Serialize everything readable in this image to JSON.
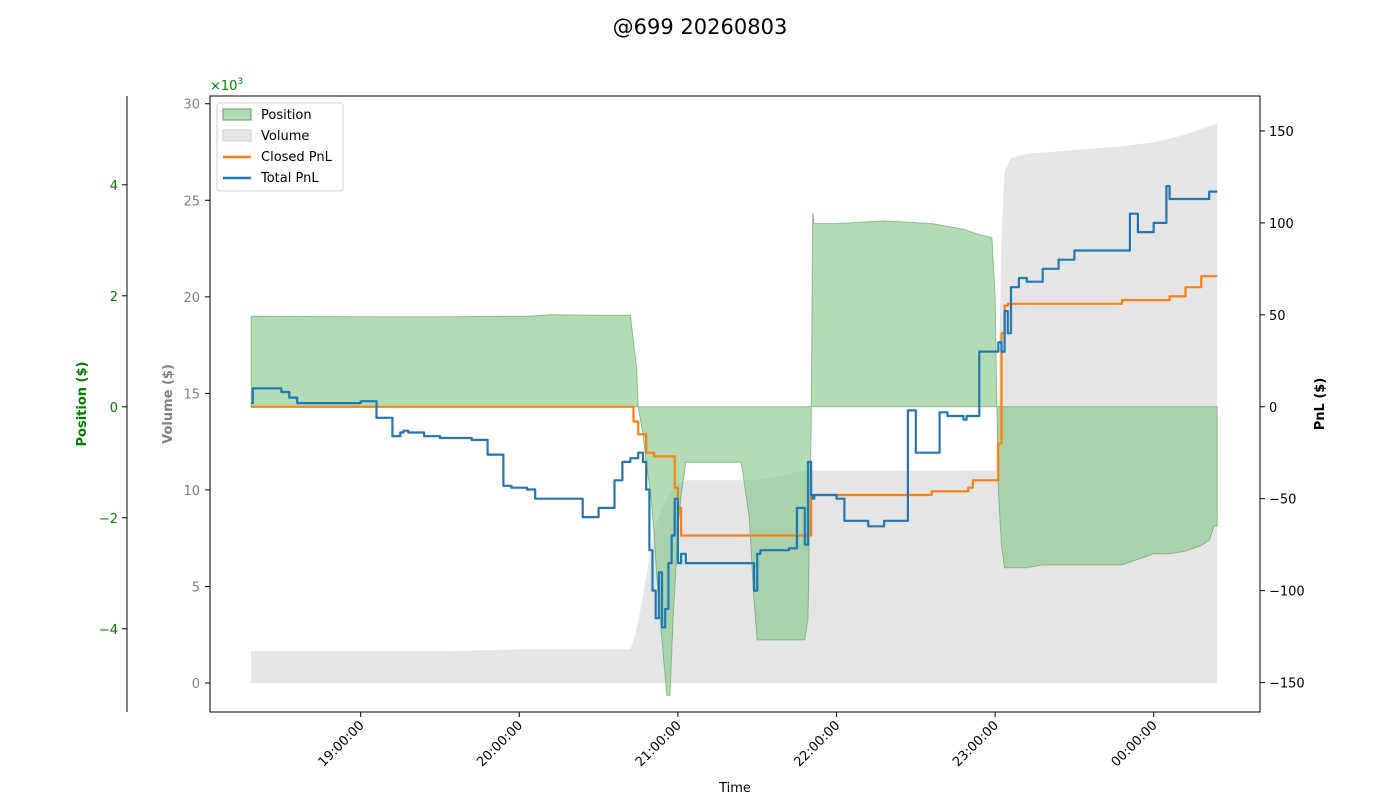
{
  "colors": {
    "position": "#008000",
    "position_fill": "#82c482",
    "volume_fill": "#d3d3d3",
    "volume_axis": "#808080",
    "closed_pnl": "#ff7f0e",
    "total_pnl": "#1f77b4",
    "axis": "#000000"
  },
  "chart_data": {
    "type": "line",
    "title": "@699 20260803",
    "xlabel": "Time",
    "x_ticks": [
      "19:00:00",
      "20:00:00",
      "21:00:00",
      "22:00:00",
      "23:00:00",
      "00:00:00"
    ],
    "axes": {
      "position": {
        "label": "Position ($)",
        "ylim": [
          -5.5,
          5.6
        ],
        "scale_label": "×10",
        "scale_exp": "3",
        "ticks": [
          4,
          2,
          0,
          -2,
          -4
        ],
        "tick_labels": [
          "4",
          "2",
          "0",
          "−2",
          "−4"
        ]
      },
      "volume": {
        "label": "Volume ($)",
        "ylim": [
          -1500,
          30400
        ],
        "ticks": [
          0,
          5000,
          10000,
          15000,
          20000,
          25000,
          30000
        ],
        "tick_labels": [
          "0",
          "5",
          "10",
          "15",
          "20",
          "25",
          "30"
        ]
      },
      "pnl": {
        "label": "PnL ($)",
        "ylim": [
          -166,
          169
        ],
        "ticks": [
          150,
          100,
          50,
          0,
          -50,
          -100,
          -150
        ],
        "tick_labels": [
          "150",
          "100",
          "50",
          "0",
          "−50",
          "−100",
          "−150"
        ]
      }
    },
    "xlim_hours": [
      18.05,
      24.67
    ],
    "legend": {
      "position": "top-left",
      "entries": [
        {
          "label": "Position",
          "key": "position"
        },
        {
          "label": "Volume",
          "key": "volume"
        },
        {
          "label": "Closed PnL",
          "key": "closed_pnl"
        },
        {
          "label": "Total PnL",
          "key": "total_pnl"
        }
      ]
    },
    "series": [
      {
        "name": "Position",
        "kind": "area",
        "axis": "position",
        "x": [
          18.31,
          18.33,
          19.2,
          19.5,
          19.9,
          20.05,
          20.2,
          20.5,
          20.7,
          20.74,
          20.75,
          20.78,
          20.8,
          20.83,
          20.85,
          20.87,
          20.9,
          20.93,
          20.95,
          20.97,
          20.99,
          21.0,
          21.02,
          21.05,
          21.4,
          21.45,
          21.48,
          21.5,
          21.52,
          21.8,
          21.82,
          21.84,
          21.85,
          21.86,
          22.0,
          22.3,
          22.6,
          22.7,
          22.8,
          22.9,
          22.98,
          23.0,
          23.02,
          23.04,
          23.06,
          23.08,
          23.1,
          23.2,
          23.3,
          23.5,
          23.8,
          24.0,
          24.1,
          24.2,
          24.3,
          24.35,
          24.38,
          24.4
        ],
        "y": [
          1.63,
          1.63,
          1.62,
          1.62,
          1.63,
          1.63,
          1.66,
          1.65,
          1.65,
          0.7,
          0.0,
          -0.5,
          -1.0,
          -1.6,
          -2.3,
          -3.2,
          -4.2,
          -5.2,
          -5.2,
          -3.8,
          -2.8,
          -2.2,
          -1.6,
          -1.0,
          -1.0,
          -2.0,
          -3.5,
          -4.2,
          -4.2,
          -4.2,
          -3.8,
          -0.5,
          3.5,
          3.3,
          3.3,
          3.35,
          3.3,
          3.25,
          3.2,
          3.1,
          3.05,
          2.0,
          -1.5,
          -2.5,
          -2.9,
          -2.9,
          -2.9,
          -2.9,
          -2.85,
          -2.85,
          -2.85,
          -2.65,
          -2.65,
          -2.6,
          -2.5,
          -2.4,
          -2.15,
          -2.15
        ]
      },
      {
        "name": "Volume",
        "kind": "area",
        "axis": "volume",
        "x": [
          18.31,
          18.33,
          19.5,
          20.05,
          20.5,
          20.7,
          20.72,
          20.75,
          20.78,
          20.8,
          20.82,
          20.85,
          20.9,
          20.95,
          21.0,
          21.05,
          21.5,
          21.8,
          21.85,
          22.0,
          22.3,
          22.6,
          22.9,
          23.0,
          23.02,
          23.04,
          23.06,
          23.1,
          23.2,
          23.5,
          23.8,
          24.0,
          24.1,
          24.2,
          24.3,
          24.4
        ],
        "y": [
          1650,
          1650,
          1650,
          1750,
          1750,
          1750,
          2200,
          3200,
          4500,
          5500,
          6500,
          8000,
          9000,
          9800,
          10300,
          10500,
          10500,
          11000,
          11000,
          11000,
          11000,
          11000,
          11000,
          11000,
          14000,
          23000,
          26500,
          27200,
          27400,
          27600,
          27800,
          28000,
          28200,
          28400,
          28700,
          28950
        ]
      },
      {
        "name": "Closed PnL",
        "kind": "line",
        "axis": "pnl",
        "x": [
          18.31,
          20.68,
          20.72,
          20.75,
          20.8,
          20.85,
          20.9,
          20.93,
          20.95,
          20.98,
          21.0,
          21.02,
          21.5,
          21.75,
          21.8,
          21.84,
          21.86,
          22.0,
          22.5,
          22.6,
          22.7,
          22.8,
          22.83,
          22.86,
          22.9,
          22.98,
          23.02,
          23.04,
          23.06,
          23.08,
          23.2,
          23.5,
          23.8,
          24.0,
          24.1,
          24.2,
          24.3,
          24.4
        ],
        "y": [
          0,
          0,
          -8,
          -15,
          -25,
          -27,
          -27,
          -27,
          -27,
          -44,
          -55,
          -70,
          -70,
          -70,
          -70,
          -48,
          -48,
          -48,
          -48,
          -46,
          -46,
          -46,
          -44,
          -40,
          -40,
          -40,
          -20,
          40,
          55,
          56,
          56,
          56,
          58,
          58,
          60,
          65,
          71,
          71
        ]
      },
      {
        "name": "Total PnL",
        "kind": "line",
        "axis": "pnl",
        "x": [
          18.31,
          18.32,
          18.33,
          18.5,
          18.55,
          18.6,
          18.65,
          18.7,
          18.75,
          19.0,
          19.02,
          19.1,
          19.15,
          19.2,
          19.25,
          19.27,
          19.3,
          19.4,
          19.5,
          19.6,
          19.7,
          19.8,
          19.9,
          19.95,
          20.05,
          20.1,
          20.2,
          20.4,
          20.5,
          20.6,
          20.65,
          20.7,
          20.72,
          20.75,
          20.78,
          20.8,
          20.82,
          20.84,
          20.86,
          20.88,
          20.9,
          20.92,
          20.94,
          20.96,
          20.98,
          21.0,
          21.02,
          21.05,
          21.2,
          21.4,
          21.45,
          21.48,
          21.5,
          21.52,
          21.6,
          21.7,
          21.75,
          21.8,
          21.82,
          21.84,
          21.85,
          21.86,
          22.0,
          22.05,
          22.1,
          22.2,
          22.3,
          22.4,
          22.45,
          22.5,
          22.6,
          22.65,
          22.7,
          22.75,
          22.8,
          22.82,
          22.85,
          22.9,
          22.98,
          23.0,
          23.02,
          23.04,
          23.06,
          23.08,
          23.1,
          23.15,
          23.2,
          23.3,
          23.4,
          23.5,
          23.7,
          23.8,
          23.85,
          23.9,
          24.0,
          24.03,
          24.08,
          24.1,
          24.15,
          24.2,
          24.25,
          24.3,
          24.35,
          24.4
        ],
        "y": [
          2,
          10,
          10,
          8,
          5,
          2,
          2,
          2,
          2,
          3,
          3,
          -6,
          -6,
          -16,
          -14,
          -13,
          -14,
          -16,
          -17,
          -17,
          -18,
          -26,
          -43,
          -44,
          -45,
          -50,
          -50,
          -60,
          -55,
          -40,
          -30,
          -28,
          -28,
          -25,
          -30,
          -45,
          -78,
          -100,
          -115,
          -90,
          -120,
          -110,
          -85,
          -70,
          -50,
          -85,
          -80,
          -85,
          -85,
          -85,
          -85,
          -100,
          -80,
          -78,
          -78,
          -77,
          -55,
          -75,
          -30,
          -48,
          -50,
          -48,
          -50,
          -62,
          -62,
          -65,
          -62,
          -62,
          -2,
          -25,
          -25,
          -3,
          -5,
          -5,
          -7,
          -5,
          -5,
          30,
          30,
          30,
          35,
          30,
          52,
          40,
          65,
          70,
          68,
          75,
          80,
          85,
          85,
          85,
          105,
          95,
          100,
          100,
          120,
          113,
          113,
          113,
          113,
          113,
          117,
          117
        ]
      }
    ]
  }
}
